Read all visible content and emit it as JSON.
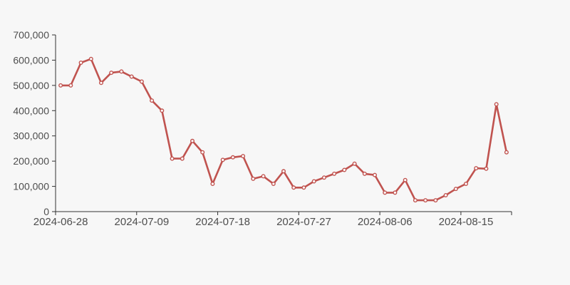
{
  "page": {
    "background": "#f7f7f7"
  },
  "chart_data": {
    "type": "line",
    "title": "",
    "legend": [],
    "grid": false,
    "x_axis_type": "category",
    "x_tick_labels": [
      "2024-06-28",
      "2024-07-09",
      "2024-07-18",
      "2024-07-27",
      "2024-08-06",
      "2024-08-15"
    ],
    "x_tick_indices": [
      0,
      8,
      16,
      24,
      32,
      40
    ],
    "values": [
      500000,
      500000,
      590000,
      605000,
      510000,
      550000,
      555000,
      535000,
      515000,
      440000,
      400000,
      210000,
      210000,
      280000,
      235000,
      110000,
      205000,
      215000,
      220000,
      130000,
      140000,
      110000,
      160000,
      95000,
      95000,
      120000,
      135000,
      150000,
      165000,
      190000,
      150000,
      145000,
      75000,
      75000,
      125000,
      45000,
      45000,
      45000,
      65000,
      90000,
      110000,
      172000,
      170000,
      425000,
      235000
    ],
    "ylim": [
      0,
      700000
    ],
    "y_tick_step": 100000,
    "y_tick_labels": [
      "0",
      "100,000",
      "200,000",
      "300,000",
      "400,000",
      "500,000",
      "600,000",
      "700,000"
    ],
    "colors": {
      "line": "#c0534f",
      "marker_fill": "#ffffff",
      "axis": "#333333",
      "tick_label": "#4e4e4e",
      "background": "#f7f7f7"
    }
  }
}
